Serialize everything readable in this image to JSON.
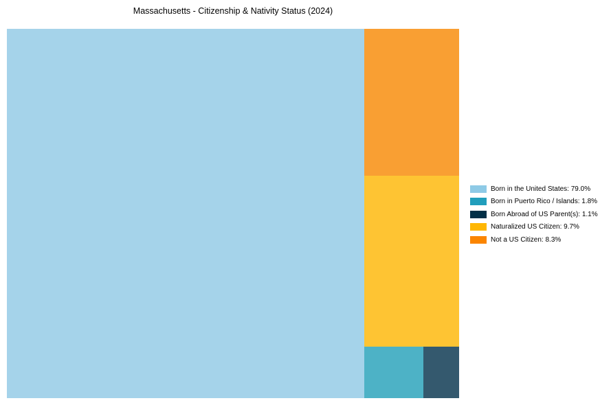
{
  "header": {
    "title": "Massachusetts - Citizenship & Nativity Status (2024)"
  },
  "chart_data": {
    "type": "treemap",
    "title": "Massachusetts - Citizenship & Nativity Status (2024)",
    "categories": [
      "Born in the United States",
      "Born in Puerto Rico / Islands",
      "Born Abroad of US Parent(s)",
      "Naturalized US Citizen",
      "Not a US Citizen"
    ],
    "values": [
      79.0,
      1.8,
      1.1,
      9.7,
      8.3
    ],
    "unit": "%",
    "block_colors": [
      "#a5d3ea",
      "#4db2c6",
      "#34596e",
      "#fec433",
      "#f99f33"
    ],
    "legend_colors": [
      "#8ecae6",
      "#219ebc",
      "#023047",
      "#ffb703",
      "#fb8500"
    ],
    "legend_entries": [
      "Born in the United States: 79.0%",
      "Born in Puerto Rico / Islands: 1.8%",
      "Born Abroad of US Parent(s): 1.1%",
      "Naturalized US Citizen: 9.7%",
      "Not a US Citizen: 8.3%"
    ],
    "legend_position": "right-middle",
    "layout_hints": {
      "largest_block": "left full-height",
      "right_column_order_top_to_bottom": [
        "Not a US Citizen",
        "Naturalized US Citizen",
        "bottom row: Born in Puerto Rico / Islands (left), Born Abroad of US Parent(s) (right)"
      ],
      "gridlines": false,
      "axes_visible": false
    }
  }
}
